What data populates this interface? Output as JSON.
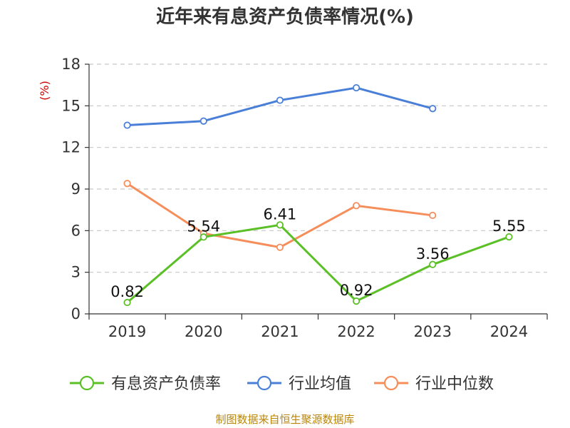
{
  "chart_data": {
    "type": "line",
    "title": "近年来有息资产负债率情况(%)",
    "ylabel": "(%)",
    "xlabel": "",
    "categories": [
      "2019",
      "2020",
      "2021",
      "2022",
      "2023",
      "2024"
    ],
    "ylim": [
      0,
      18
    ],
    "yticks": [
      "0",
      "3",
      "6",
      "9",
      "12",
      "15",
      "18"
    ],
    "grid": true,
    "legend_position": "bottom",
    "series": [
      {
        "name": "有息资产负债率",
        "color": "#5bbf26",
        "values": [
          0.82,
          5.54,
          6.41,
          0.92,
          3.56,
          5.55
        ],
        "labels": [
          "0.82",
          "5.54",
          "6.41",
          "0.92",
          "3.56",
          "5.55"
        ]
      },
      {
        "name": "行业均值",
        "color": "#4a7fd8",
        "values": [
          13.6,
          13.9,
          15.4,
          16.3,
          14.8,
          null
        ]
      },
      {
        "name": "行业中位数",
        "color": "#f58e5a",
        "values": [
          9.4,
          5.8,
          4.8,
          7.8,
          7.1,
          null
        ]
      }
    ],
    "source": "制图数据来自恒生聚源数据库"
  }
}
